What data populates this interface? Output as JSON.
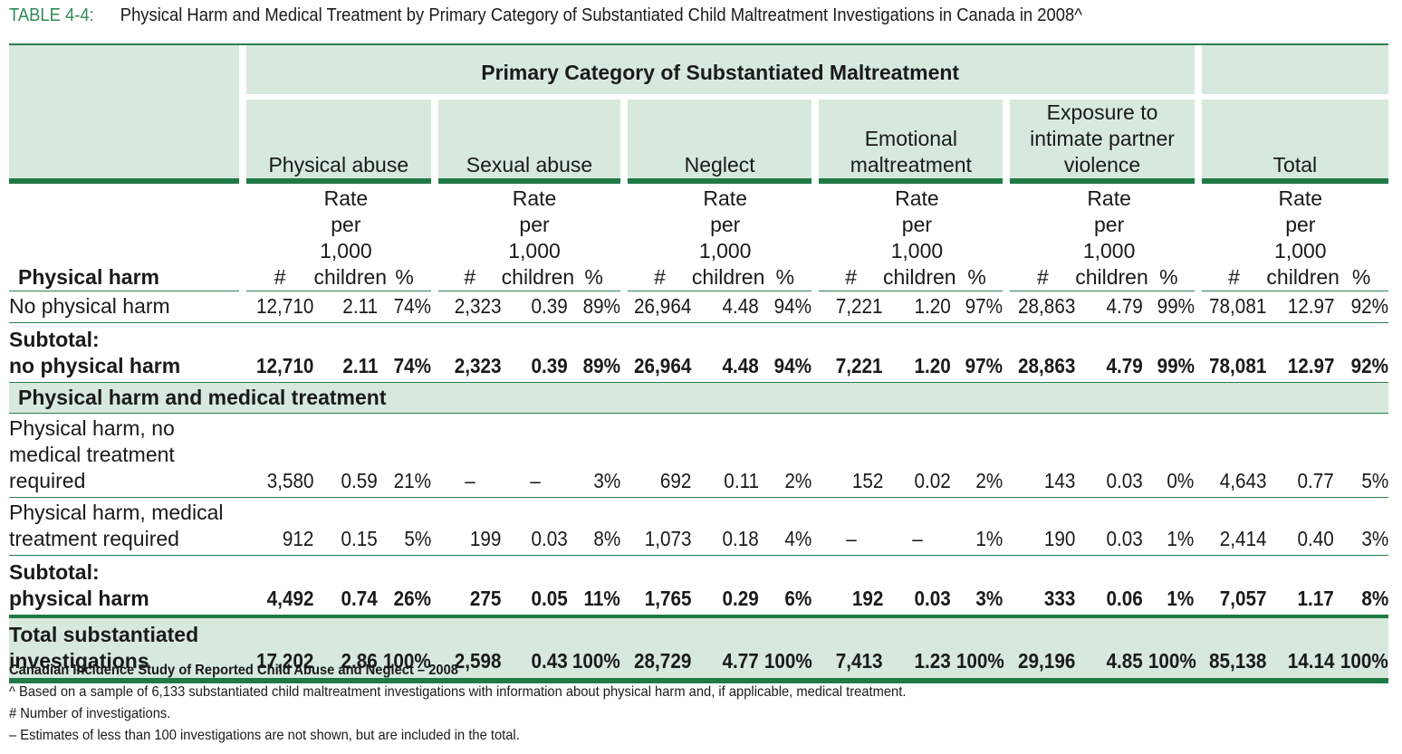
{
  "title": {
    "label": "TABLE 4-4:",
    "text": "Physical Harm and Medical Treatment by Primary Category of Substantiated Child Maltreatment Investigations in Canada in 2008^"
  },
  "header": {
    "primary": "Primary Category of Substantiated Maltreatment",
    "categories": [
      "Physical abuse",
      "Sexual abuse",
      "Neglect",
      "Emotional maltreatment",
      "Exposure to intimate partner violence"
    ],
    "total": "Total",
    "row_label": "Physical harm",
    "col_count": "#",
    "col_rate": "Rate per 1,000 children",
    "col_pct": "%"
  },
  "rows": {
    "no_harm": {
      "label": "No physical harm",
      "values": [
        "12,710",
        "2.11",
        "74%",
        "2,323",
        "0.39",
        "89%",
        "26,964",
        "4.48",
        "94%",
        "7,221",
        "1.20",
        "97%",
        "28,863",
        "4.79",
        "99%",
        "78,081",
        "12.97",
        "92%"
      ]
    },
    "subtotal_no_harm": {
      "label_line1": "Subtotal:",
      "label_line2": "no physical harm",
      "values": [
        "12,710",
        "2.11",
        "74%",
        "2,323",
        "0.39",
        "89%",
        "26,964",
        "4.48",
        "94%",
        "7,221",
        "1.20",
        "97%",
        "28,863",
        "4.79",
        "99%",
        "78,081",
        "12.97",
        "92%"
      ]
    },
    "section": {
      "label": "Physical harm and medical treatment"
    },
    "harm_no_treatment": {
      "label": "Physical harm, no medical treatment required",
      "values": [
        "3,580",
        "0.59",
        "21%",
        "–",
        "–",
        "3%",
        "692",
        "0.11",
        "2%",
        "152",
        "0.02",
        "2%",
        "143",
        "0.03",
        "0%",
        "4,643",
        "0.77",
        "5%"
      ]
    },
    "harm_treatment": {
      "label": "Physical harm, medical treatment required",
      "values": [
        "912",
        "0.15",
        "5%",
        "199",
        "0.03",
        "8%",
        "1,073",
        "0.18",
        "4%",
        "–",
        "–",
        "1%",
        "190",
        "0.03",
        "1%",
        "2,414",
        "0.40",
        "3%"
      ]
    },
    "subtotal_harm": {
      "label_line1": "Subtotal:",
      "label_line2": "physical harm",
      "values": [
        "4,492",
        "0.74",
        "26%",
        "275",
        "0.05",
        "11%",
        "1,765",
        "0.29",
        "6%",
        "192",
        "0.03",
        "3%",
        "333",
        "0.06",
        "1%",
        "7,057",
        "1.17",
        "8%"
      ]
    },
    "total": {
      "label": "Total substantiated investigations",
      "values": [
        "17,202",
        "2.86",
        "100%",
        "2,598",
        "0.43",
        "100%",
        "28,729",
        "4.77",
        "100%",
        "7,413",
        "1.23",
        "100%",
        "29,196",
        "4.85",
        "100%",
        "85,138",
        "14.14",
        "100%"
      ]
    }
  },
  "notes": {
    "source": "Canadian Incidence Study of Reported Child Abuse and Neglect – 2008",
    "lines": [
      "^  Based on a sample of 6,133 substantiated child maltreatment investigations with information about physical harm and, if applicable, medical treatment.",
      "#  Number of investigations.",
      "–  Estimates of less than 100 investigations are not shown, but are included in the total."
    ]
  },
  "colors": {
    "accent": "#1f7a45",
    "header_bg": "#d7e9dc",
    "title_label": "#2e8b57"
  }
}
